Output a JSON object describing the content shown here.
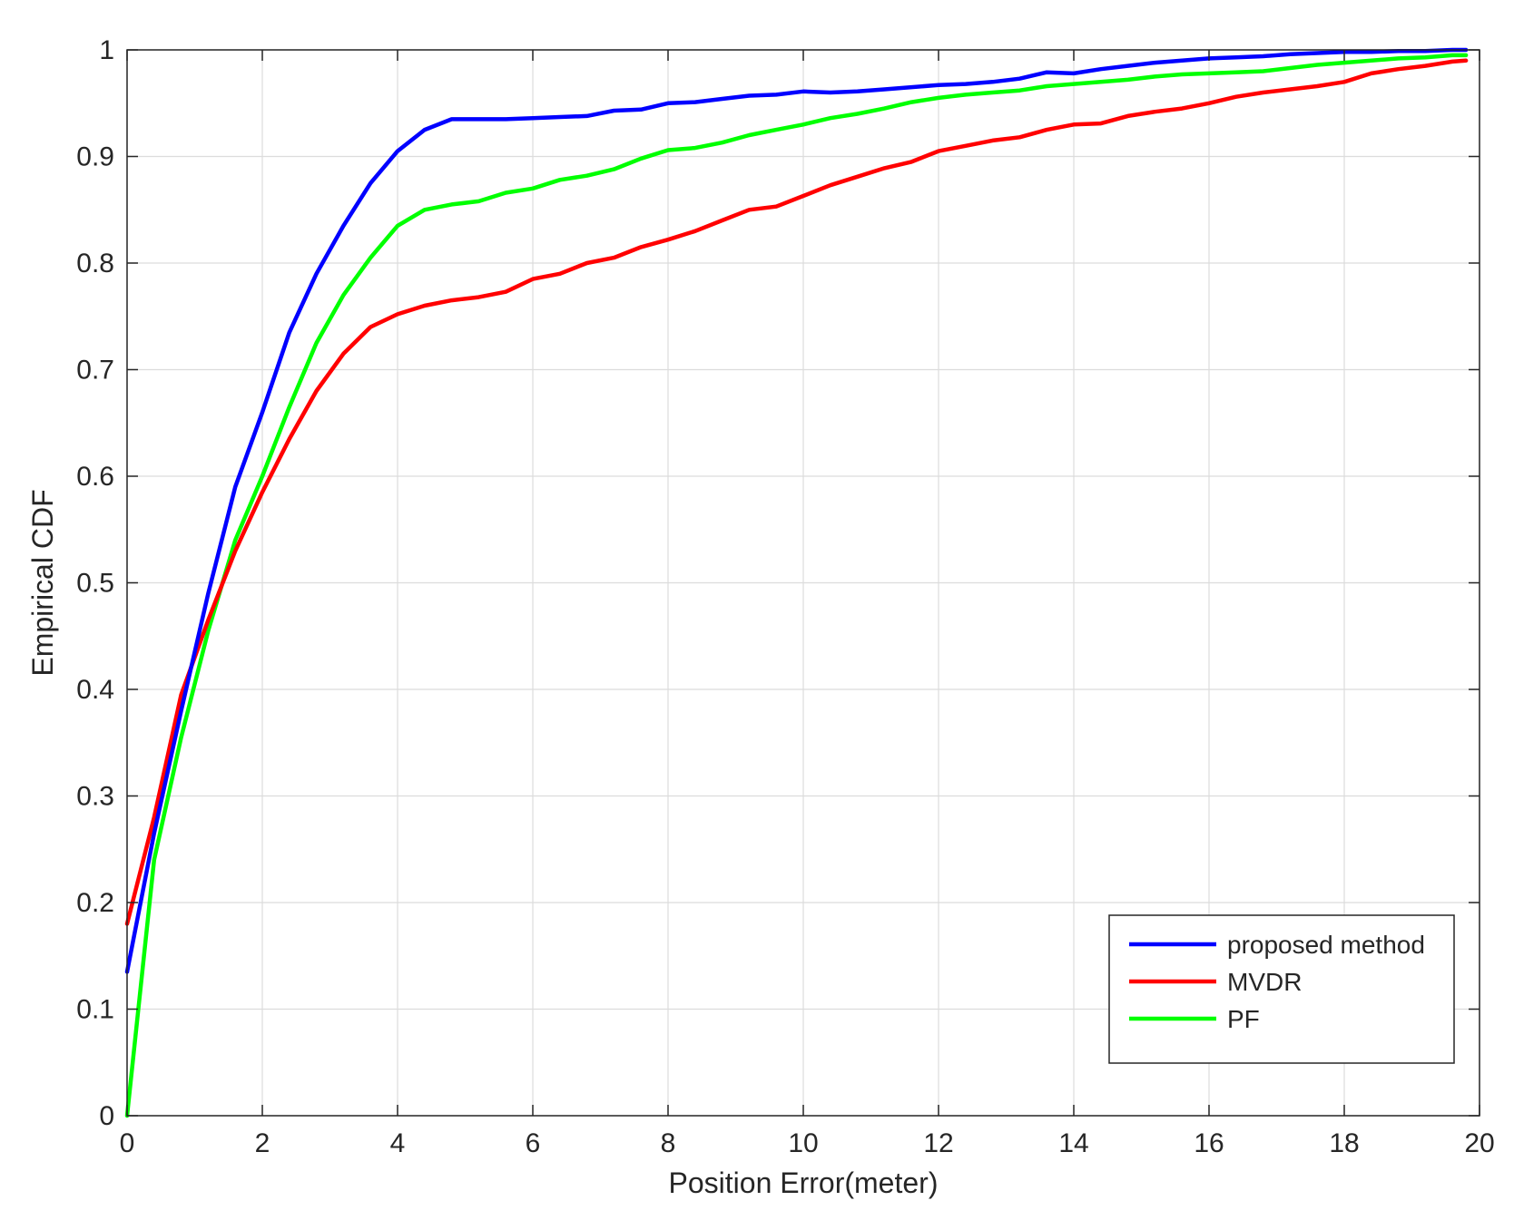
{
  "chart_data": {
    "type": "line",
    "title": "",
    "xlabel": "Position Error(meter)",
    "ylabel": "Empirical CDF",
    "xlim": [
      0,
      20
    ],
    "ylim": [
      0,
      1
    ],
    "xticks": [
      0,
      2,
      4,
      6,
      8,
      10,
      12,
      14,
      16,
      18,
      20
    ],
    "xtick_labels": [
      "0",
      "2",
      "4",
      "6",
      "8",
      "10",
      "12",
      "14",
      "16",
      "18",
      "20"
    ],
    "yticks": [
      0,
      0.1,
      0.2,
      0.3,
      0.4,
      0.5,
      0.6,
      0.7,
      0.8,
      0.9,
      1
    ],
    "ytick_labels": [
      "0",
      "0.1",
      "0.2",
      "0.3",
      "0.4",
      "0.5",
      "0.6",
      "0.7",
      "0.8",
      "0.9",
      "1"
    ],
    "grid": true,
    "legend_position": "bottom-right",
    "series": [
      {
        "name": "proposed method",
        "color": "#0000ff",
        "x": [
          0,
          0.4,
          0.8,
          1.2,
          1.6,
          2.0,
          2.4,
          2.8,
          3.2,
          3.6,
          4.0,
          4.4,
          4.8,
          5.2,
          5.6,
          6.0,
          6.4,
          6.8,
          7.2,
          7.6,
          8.0,
          8.4,
          8.8,
          9.2,
          9.6,
          10.0,
          10.4,
          10.8,
          11.2,
          11.6,
          12.0,
          12.4,
          12.8,
          13.2,
          13.6,
          14.0,
          14.4,
          14.8,
          15.2,
          15.6,
          16.0,
          16.4,
          16.8,
          17.2,
          17.6,
          18.0,
          18.4,
          18.8,
          19.2,
          19.6,
          19.8
        ],
        "y": [
          0.135,
          0.265,
          0.38,
          0.49,
          0.59,
          0.66,
          0.735,
          0.79,
          0.835,
          0.875,
          0.905,
          0.925,
          0.935,
          0.935,
          0.935,
          0.936,
          0.937,
          0.938,
          0.943,
          0.944,
          0.95,
          0.951,
          0.954,
          0.957,
          0.958,
          0.961,
          0.96,
          0.961,
          0.963,
          0.965,
          0.967,
          0.968,
          0.97,
          0.973,
          0.979,
          0.978,
          0.982,
          0.985,
          0.988,
          0.99,
          0.992,
          0.993,
          0.994,
          0.996,
          0.997,
          0.998,
          0.998,
          0.999,
          0.999,
          1.0,
          1.0
        ]
      },
      {
        "name": "MVDR",
        "color": "#ff0000",
        "x": [
          0,
          0.4,
          0.8,
          1.2,
          1.6,
          2.0,
          2.4,
          2.8,
          3.2,
          3.6,
          4.0,
          4.4,
          4.8,
          5.2,
          5.6,
          6.0,
          6.4,
          6.8,
          7.2,
          7.6,
          8.0,
          8.4,
          8.8,
          9.2,
          9.6,
          10.0,
          10.4,
          10.8,
          11.2,
          11.6,
          12.0,
          12.4,
          12.8,
          13.2,
          13.6,
          14.0,
          14.4,
          14.8,
          15.2,
          15.6,
          16.0,
          16.4,
          16.8,
          17.2,
          17.6,
          18.0,
          18.4,
          18.8,
          19.2,
          19.6,
          19.8
        ],
        "y": [
          0.18,
          0.28,
          0.395,
          0.465,
          0.53,
          0.585,
          0.635,
          0.68,
          0.715,
          0.74,
          0.752,
          0.76,
          0.765,
          0.768,
          0.773,
          0.785,
          0.79,
          0.8,
          0.805,
          0.815,
          0.822,
          0.83,
          0.84,
          0.85,
          0.853,
          0.863,
          0.873,
          0.881,
          0.889,
          0.895,
          0.905,
          0.91,
          0.915,
          0.918,
          0.925,
          0.93,
          0.931,
          0.938,
          0.942,
          0.945,
          0.95,
          0.956,
          0.96,
          0.963,
          0.966,
          0.97,
          0.978,
          0.982,
          0.985,
          0.989,
          0.99
        ]
      },
      {
        "name": "PF",
        "color": "#00ff00",
        "x": [
          0,
          0.4,
          0.8,
          1.2,
          1.6,
          2.0,
          2.4,
          2.8,
          3.2,
          3.6,
          4.0,
          4.4,
          4.8,
          5.2,
          5.6,
          6.0,
          6.4,
          6.8,
          7.2,
          7.6,
          8.0,
          8.4,
          8.8,
          9.2,
          9.6,
          10.0,
          10.4,
          10.8,
          11.2,
          11.6,
          12.0,
          12.4,
          12.8,
          13.2,
          13.6,
          14.0,
          14.4,
          14.8,
          15.2,
          15.6,
          16.0,
          16.4,
          16.8,
          17.2,
          17.6,
          18.0,
          18.4,
          18.8,
          19.2,
          19.6,
          19.8
        ],
        "y": [
          0.0,
          0.24,
          0.355,
          0.455,
          0.54,
          0.6,
          0.665,
          0.725,
          0.77,
          0.805,
          0.835,
          0.85,
          0.855,
          0.858,
          0.866,
          0.87,
          0.878,
          0.882,
          0.888,
          0.898,
          0.906,
          0.908,
          0.913,
          0.92,
          0.925,
          0.93,
          0.936,
          0.94,
          0.945,
          0.951,
          0.955,
          0.958,
          0.96,
          0.962,
          0.966,
          0.968,
          0.97,
          0.972,
          0.975,
          0.977,
          0.978,
          0.979,
          0.98,
          0.983,
          0.986,
          0.988,
          0.99,
          0.992,
          0.993,
          0.995,
          0.995
        ]
      }
    ]
  }
}
